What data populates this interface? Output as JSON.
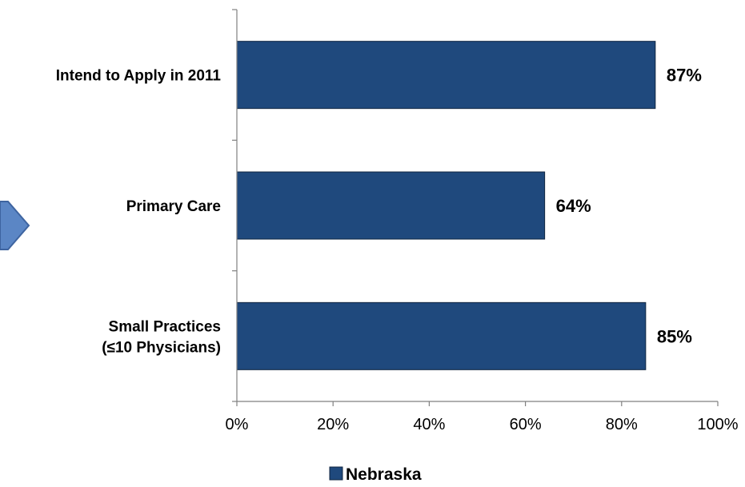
{
  "chart_data": {
    "type": "bar",
    "orientation": "horizontal",
    "categories": [
      [
        "Intend to Apply in 2011"
      ],
      [
        "Primary Care"
      ],
      [
        "Small Practices",
        "(≤10 Physicians)"
      ]
    ],
    "series": [
      {
        "name": "Nebraska",
        "values": [
          87,
          64,
          85
        ],
        "labels": [
          "87%",
          "64%",
          "85%"
        ],
        "color": "#1F497D"
      }
    ],
    "xlim": [
      0,
      100
    ],
    "xticks": [
      0,
      20,
      40,
      60,
      80,
      100
    ],
    "xtick_labels": [
      "0%",
      "20%",
      "40%",
      "60%",
      "80%",
      "100%"
    ],
    "grid": false,
    "legend_position": "bottom"
  },
  "colors": {
    "bar": "#1F497D",
    "bar_border": "#0F2540",
    "axis": "#808080",
    "arrow_fill": "#5B86C5",
    "arrow_stroke": "#3E64A0"
  },
  "decorations": {
    "arrow_icon": "chevron-arrow-right"
  }
}
